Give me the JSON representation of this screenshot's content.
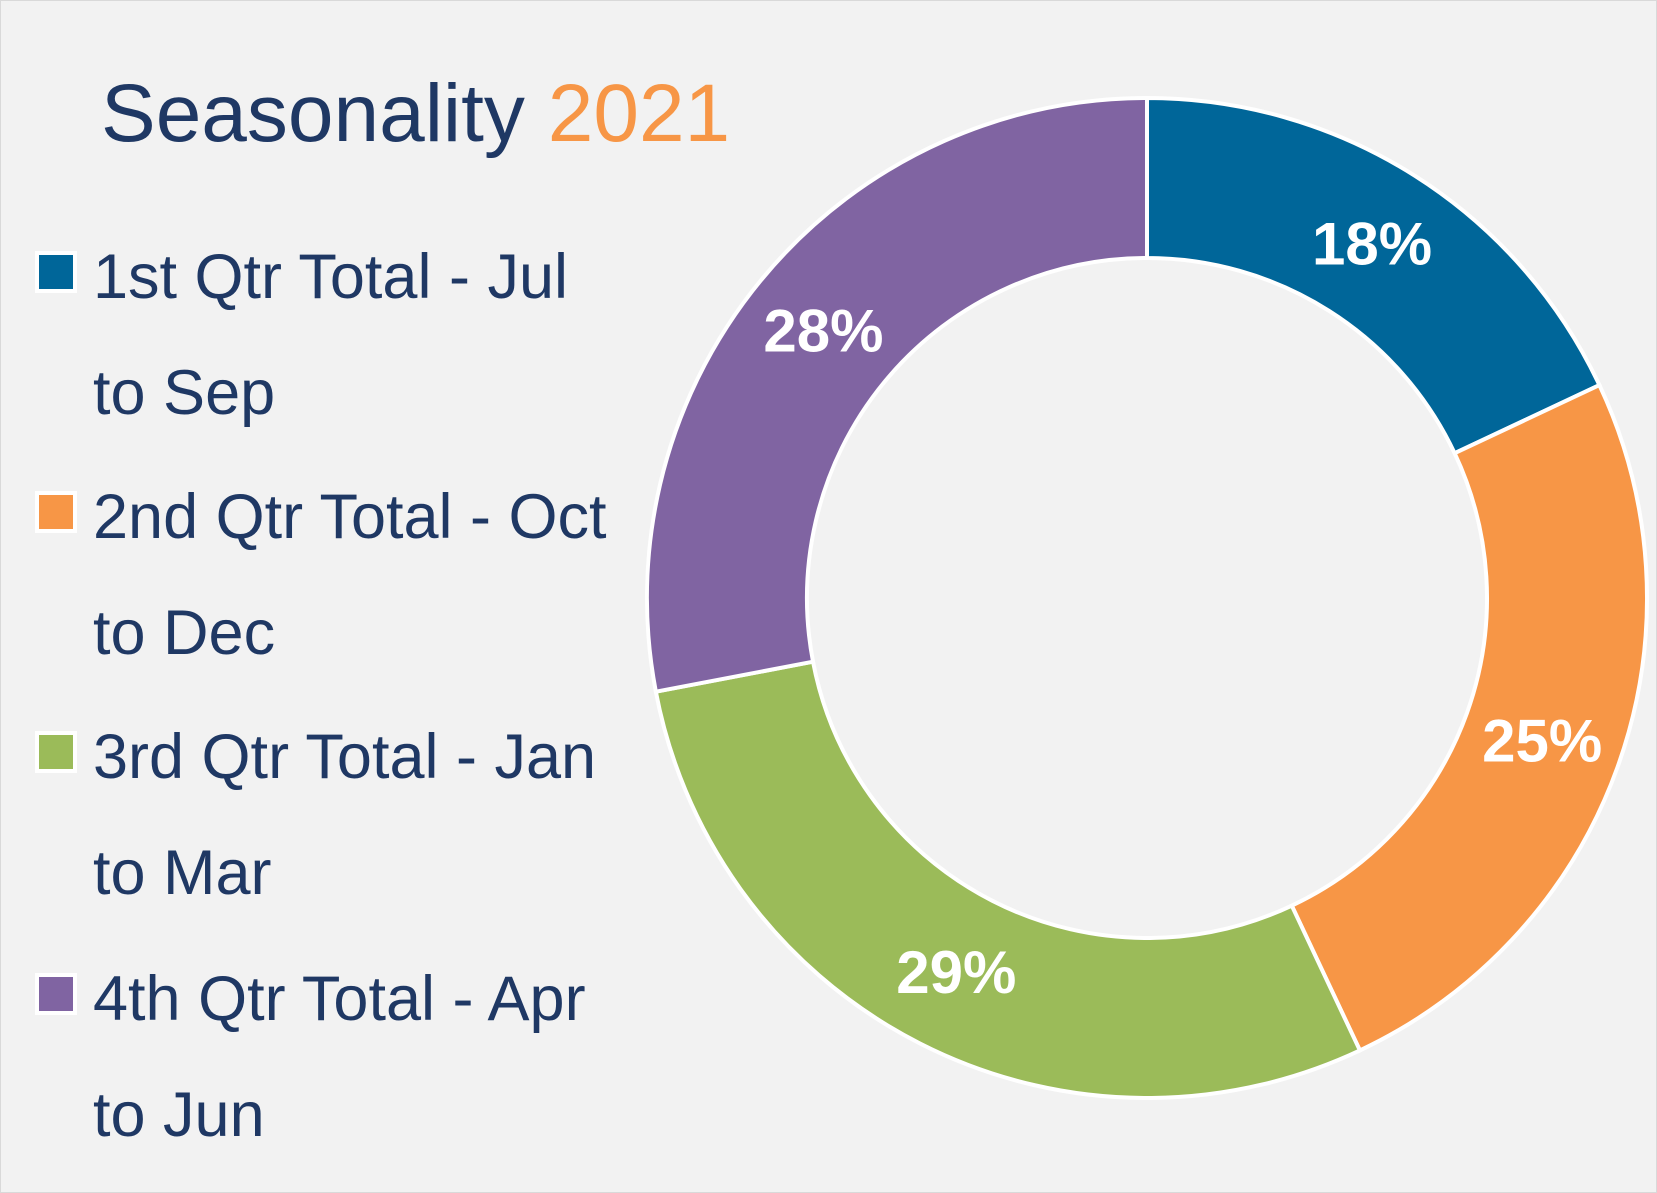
{
  "chart_data": {
    "type": "pie",
    "title": "Seasonality",
    "title_year": "2021",
    "categories": [
      "1st Qtr Total - Jul to Sep",
      "2nd Qtr Total - Oct to Dec",
      "3rd Qtr Total - Jan to Mar",
      "4th Qtr Total - Apr to Jun"
    ],
    "values": [
      18,
      25,
      29,
      28
    ],
    "data_labels": [
      "18%",
      "25%",
      "29%",
      "28%"
    ],
    "colors": [
      "#006699",
      "#f79646",
      "#9bbb59",
      "#8064a2"
    ],
    "legend_position": "left",
    "style": "donut"
  }
}
